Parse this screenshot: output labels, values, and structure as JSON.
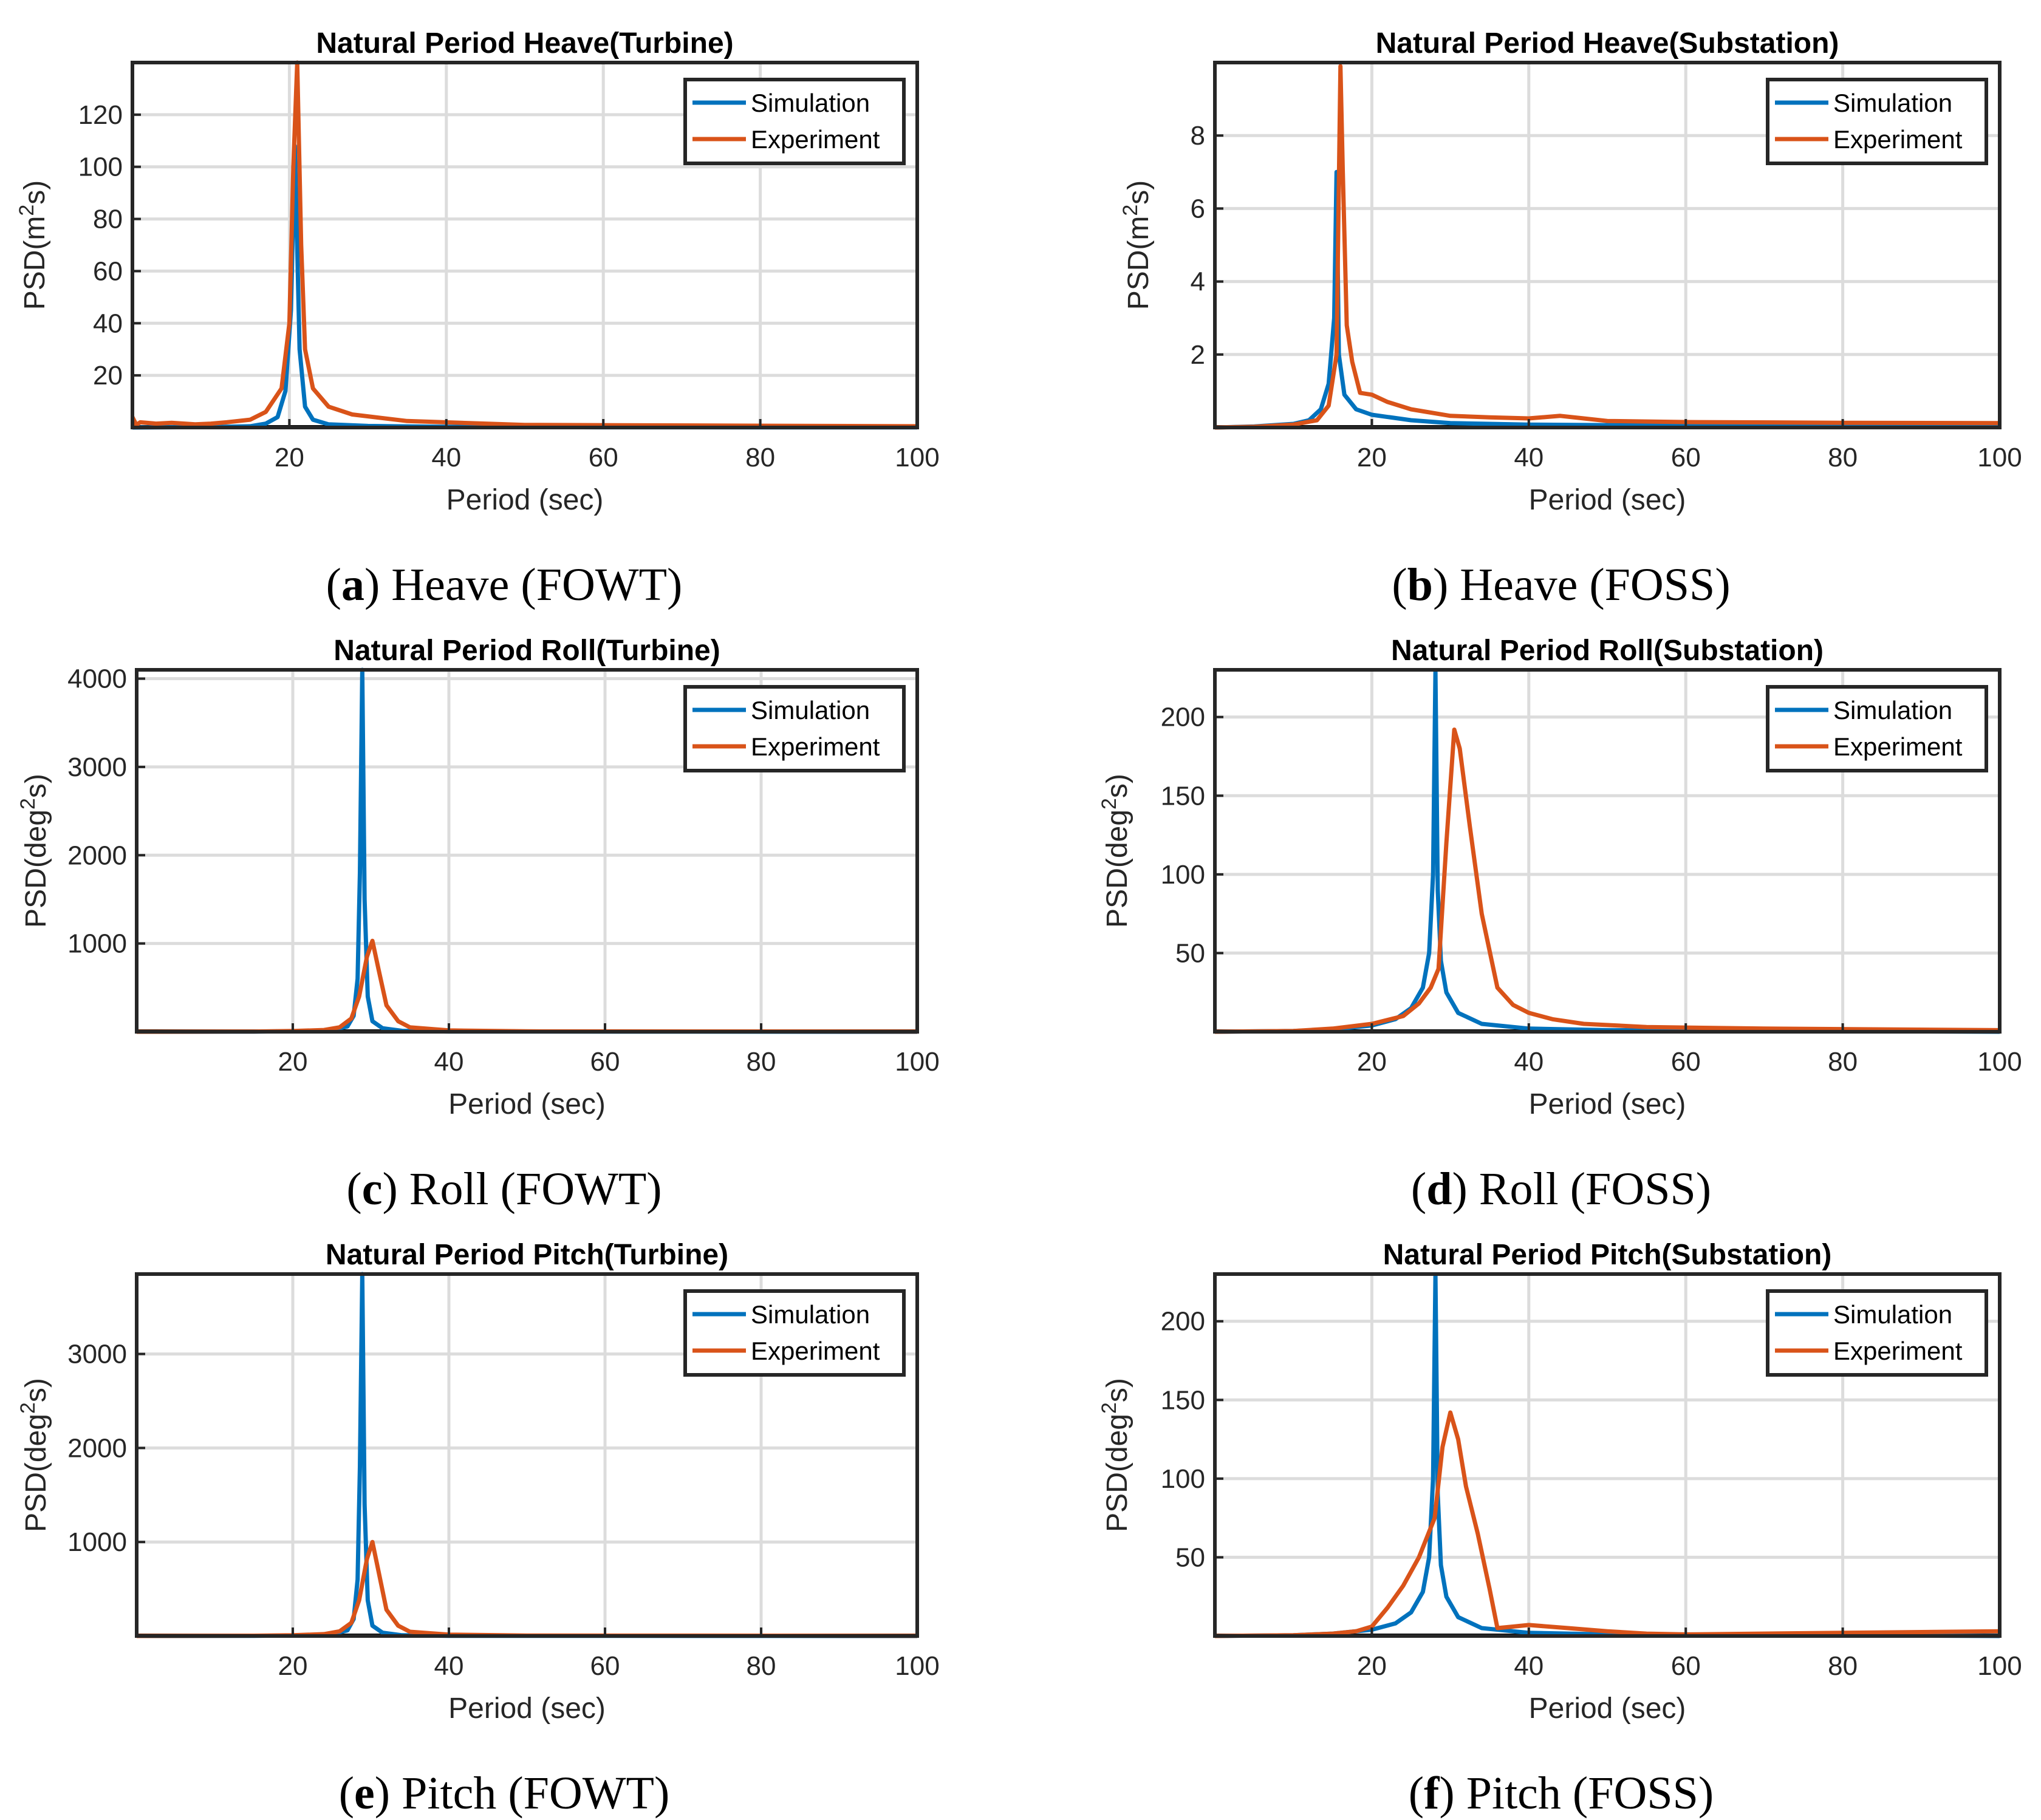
{
  "colors": {
    "simulation": "#0072BD",
    "experiment": "#D95319",
    "grid": "#dcdcdc",
    "axis": "#262626"
  },
  "chart_data": [
    {
      "id": "a",
      "type": "line",
      "title": "Natural Period Heave(Turbine)",
      "xlabel": "Period (sec)",
      "ylabel": "PSD(m",
      "ylabel_sup": "2",
      "ylabel_end": "s)",
      "xlim": [
        0,
        100
      ],
      "ylim": [
        0,
        140
      ],
      "xticks": [
        20,
        40,
        60,
        80,
        100
      ],
      "yticks": [
        20,
        40,
        60,
        80,
        100,
        120
      ],
      "legend": [
        "Simulation",
        "Experiment"
      ],
      "legend_location": "top-right",
      "caption_letter": "a",
      "caption_text": " Heave (FOWT)",
      "series": [
        {
          "name": "Simulation",
          "x": [
            0,
            10,
            15,
            17,
            18.5,
            19.5,
            20.2,
            20.7,
            21.3,
            22,
            23,
            25,
            30,
            40,
            60,
            100
          ],
          "y": [
            0,
            0.2,
            0.5,
            1.5,
            4,
            14,
            45,
            108,
            30,
            8,
            3,
            1.2,
            0.6,
            0.3,
            0.1,
            0.05
          ]
        },
        {
          "name": "Experiment",
          "x": [
            0,
            0.5,
            1,
            3,
            5,
            8,
            10,
            12,
            15,
            17,
            19,
            20,
            20.5,
            21,
            21.5,
            22,
            23,
            25,
            28,
            35,
            50,
            100
          ],
          "y": [
            4,
            1,
            2,
            1.5,
            1.8,
            1.2,
            1.5,
            2,
            3,
            6,
            15,
            40,
            100,
            140,
            70,
            30,
            15,
            8,
            5,
            2.5,
            1,
            0.5
          ]
        }
      ]
    },
    {
      "id": "b",
      "type": "line",
      "title": "Natural Period Heave(Substation)",
      "xlabel": "Period (sec)",
      "ylabel": "PSD(m",
      "ylabel_sup": "2",
      "ylabel_end": "s)",
      "xlim": [
        0,
        100
      ],
      "ylim": [
        0,
        10
      ],
      "xticks": [
        20,
        40,
        60,
        80,
        100
      ],
      "yticks": [
        2,
        4,
        6,
        8
      ],
      "legend": [
        "Simulation",
        "Experiment"
      ],
      "legend_location": "top-right",
      "caption_letter": "b",
      "caption_text": " Heave (FOSS)",
      "series": [
        {
          "name": "Simulation",
          "x": [
            0,
            5,
            10,
            12,
            13.5,
            14.5,
            15.2,
            15.5,
            15.8,
            16.5,
            18,
            20,
            25,
            30,
            40,
            60,
            100
          ],
          "y": [
            0,
            0.03,
            0.1,
            0.2,
            0.5,
            1.2,
            3,
            7,
            2,
            0.9,
            0.5,
            0.35,
            0.2,
            0.12,
            0.08,
            0.05,
            0.03
          ]
        },
        {
          "name": "Experiment",
          "x": [
            0,
            5,
            10,
            13,
            14.5,
            15.5,
            16,
            16.3,
            16.8,
            17.5,
            18.5,
            20,
            22,
            25,
            30,
            35,
            40,
            44,
            47,
            50,
            60,
            80,
            100
          ],
          "y": [
            0,
            0.02,
            0.08,
            0.2,
            0.6,
            2,
            9.9,
            7,
            2.8,
            1.8,
            0.95,
            0.9,
            0.7,
            0.5,
            0.32,
            0.28,
            0.25,
            0.32,
            0.25,
            0.18,
            0.15,
            0.13,
            0.12
          ]
        }
      ]
    },
    {
      "id": "c",
      "type": "line",
      "title": "Natural Period Roll(Turbine)",
      "xlabel": "Period (sec)",
      "ylabel": "PSD(deg",
      "ylabel_sup": "2",
      "ylabel_end": "s)",
      "xlim": [
        0,
        100
      ],
      "ylim": [
        0,
        4100
      ],
      "xticks": [
        20,
        40,
        60,
        80,
        100
      ],
      "yticks": [
        1000,
        2000,
        3000,
        4000
      ],
      "legend": [
        "Simulation",
        "Experiment"
      ],
      "legend_location": "top-right",
      "caption_letter": "c",
      "caption_text": " Roll (FOWT)",
      "series": [
        {
          "name": "Simulation",
          "x": [
            0,
            15,
            22,
            25,
            27,
            27.8,
            28.3,
            28.6,
            28.9,
            29.2,
            29.6,
            30.2,
            31.5,
            34,
            40,
            100
          ],
          "y": [
            0,
            2,
            8,
            20,
            60,
            180,
            600,
            1800,
            4100,
            1500,
            400,
            120,
            40,
            10,
            3,
            0
          ]
        },
        {
          "name": "Experiment",
          "x": [
            0,
            15,
            20,
            24,
            26,
            27.5,
            28.5,
            29.5,
            30.2,
            31,
            32,
            33.5,
            35,
            40,
            50,
            100
          ],
          "y": [
            0,
            3,
            8,
            20,
            50,
            150,
            400,
            850,
            1030,
            700,
            300,
            120,
            50,
            15,
            5,
            2
          ]
        }
      ]
    },
    {
      "id": "d",
      "type": "line",
      "title": "Natural Period Roll(Substation)",
      "xlabel": "Period (sec)",
      "ylabel": "PSD(deg",
      "ylabel_sup": "2",
      "ylabel_end": "s)",
      "xlim": [
        0,
        100
      ],
      "ylim": [
        0,
        230
      ],
      "xticks": [
        20,
        40,
        60,
        80,
        100
      ],
      "yticks": [
        50,
        100,
        150,
        200
      ],
      "legend": [
        "Simulation",
        "Experiment"
      ],
      "legend_location": "top-right",
      "caption_letter": "d",
      "caption_text": " Roll (FOSS)",
      "series": [
        {
          "name": "Simulation",
          "x": [
            0,
            10,
            15,
            20,
            23,
            25,
            26.5,
            27.3,
            27.8,
            28.1,
            28.4,
            28.8,
            29.5,
            31,
            34,
            40,
            50,
            100
          ],
          "y": [
            0,
            0.5,
            1.5,
            4,
            8,
            15,
            28,
            50,
            100,
            229,
            90,
            45,
            25,
            12,
            5,
            2,
            1,
            0
          ]
        },
        {
          "name": "Experiment",
          "x": [
            0,
            10,
            15,
            20,
            24,
            26,
            27.5,
            28.5,
            29.5,
            30.5,
            31.2,
            32.5,
            34,
            36,
            38,
            40,
            43,
            47,
            55,
            70,
            100
          ],
          "y": [
            0,
            0.5,
            2,
            5,
            10,
            18,
            28,
            40,
            120,
            192,
            180,
            130,
            75,
            28,
            17,
            12,
            8,
            5,
            3,
            2,
            1
          ]
        }
      ]
    },
    {
      "id": "e",
      "type": "line",
      "title": "Natural Period Pitch(Turbine)",
      "xlabel": "Period (sec)",
      "ylabel": "PSD(deg",
      "ylabel_sup": "2",
      "ylabel_end": "s)",
      "xlim": [
        0,
        100
      ],
      "ylim": [
        0,
        3850
      ],
      "xticks": [
        20,
        40,
        60,
        80,
        100
      ],
      "yticks": [
        1000,
        2000,
        3000
      ],
      "legend": [
        "Simulation",
        "Experiment"
      ],
      "legend_location": "top-right",
      "caption_letter": "e",
      "caption_text": " Pitch (FOWT)",
      "series": [
        {
          "name": "Simulation",
          "x": [
            0,
            15,
            22,
            25,
            27,
            27.8,
            28.3,
            28.6,
            28.9,
            29.2,
            29.6,
            30.2,
            31.5,
            34,
            40,
            100
          ],
          "y": [
            0,
            2,
            8,
            20,
            60,
            180,
            600,
            1800,
            3850,
            1400,
            380,
            110,
            35,
            8,
            2,
            0
          ]
        },
        {
          "name": "Experiment",
          "x": [
            0,
            15,
            20,
            24,
            26,
            27.5,
            28.5,
            29.5,
            30.2,
            31,
            32,
            33.5,
            35,
            40,
            50,
            100
          ],
          "y": [
            0,
            3,
            8,
            20,
            50,
            140,
            380,
            820,
            1000,
            680,
            280,
            110,
            45,
            14,
            5,
            2
          ]
        }
      ]
    },
    {
      "id": "f",
      "type": "line",
      "title": "Natural Period Pitch(Substation)",
      "xlabel": "Period (sec)",
      "ylabel": "PSD(deg",
      "ylabel_sup": "2",
      "ylabel_end": "s)",
      "xlim": [
        0,
        100
      ],
      "ylim": [
        0,
        230
      ],
      "xticks": [
        20,
        40,
        60,
        80,
        100
      ],
      "yticks": [
        50,
        100,
        150,
        200
      ],
      "legend": [
        "Simulation",
        "Experiment"
      ],
      "legend_location": "top-right",
      "caption_letter": "f",
      "caption_text": " Pitch (FOSS)",
      "series": [
        {
          "name": "Simulation",
          "x": [
            0,
            10,
            15,
            20,
            23,
            25,
            26.5,
            27.3,
            27.8,
            28.1,
            28.4,
            28.8,
            29.5,
            31,
            34,
            40,
            50,
            100
          ],
          "y": [
            0,
            0.5,
            1.5,
            4,
            8,
            15,
            28,
            50,
            100,
            229,
            90,
            45,
            25,
            12,
            5,
            2,
            1,
            0
          ]
        },
        {
          "name": "Experiment",
          "x": [
            0,
            10,
            15,
            18,
            20,
            22,
            24,
            26,
            28,
            29,
            30,
            31,
            32,
            33.5,
            35,
            36,
            38,
            40,
            45,
            50,
            55,
            60,
            80,
            100
          ],
          "y": [
            0,
            0.5,
            1.5,
            3,
            6,
            18,
            32,
            50,
            75,
            120,
            142,
            125,
            95,
            65,
            30,
            5,
            6,
            7,
            5,
            3,
            1.5,
            1,
            2,
            3
          ]
        }
      ]
    }
  ]
}
